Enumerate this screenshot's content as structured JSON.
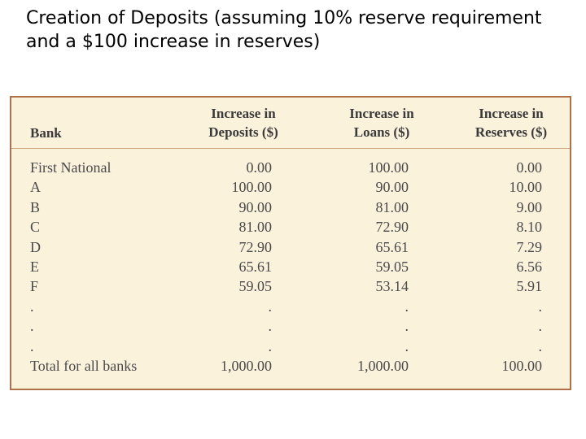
{
  "title": "Creation of Deposits (assuming 10% reserve requirement and a $100 increase in reserves)",
  "table": {
    "headers": {
      "bank": "Bank",
      "deposits_line1": "Increase in",
      "deposits_line2": "Deposits ($)",
      "loans_line1": "Increase in",
      "loans_line2": "Loans ($)",
      "reserves_line1": "Increase in",
      "reserves_line2": "Reserves ($)"
    },
    "rows": [
      {
        "bank": "First National",
        "deposits": "0.00",
        "loans": "100.00",
        "reserves": "0.00"
      },
      {
        "bank": "A",
        "deposits": "100.00",
        "loans": "90.00",
        "reserves": "10.00"
      },
      {
        "bank": "B",
        "deposits": "90.00",
        "loans": "81.00",
        "reserves": "9.00"
      },
      {
        "bank": "C",
        "deposits": "81.00",
        "loans": "72.90",
        "reserves": "8.10"
      },
      {
        "bank": "D",
        "deposits": "72.90",
        "loans": "65.61",
        "reserves": "7.29"
      },
      {
        "bank": "E",
        "deposits": "65.61",
        "loans": "59.05",
        "reserves": "6.56"
      },
      {
        "bank": "F",
        "deposits": "59.05",
        "loans": "53.14",
        "reserves": "5.91"
      },
      {
        "bank": ".",
        "deposits": ".",
        "loans": ".",
        "reserves": "."
      },
      {
        "bank": ".",
        "deposits": ".",
        "loans": ".",
        "reserves": "."
      },
      {
        "bank": ".",
        "deposits": ".",
        "loans": ".",
        "reserves": "."
      },
      {
        "bank": "Total for all banks",
        "deposits": "1,000.00",
        "loans": "1,000.00",
        "reserves": "100.00"
      }
    ]
  },
  "colors": {
    "table_background": "#fbf2dc",
    "table_border": "#b0704a",
    "text": "#4a4a4a"
  }
}
